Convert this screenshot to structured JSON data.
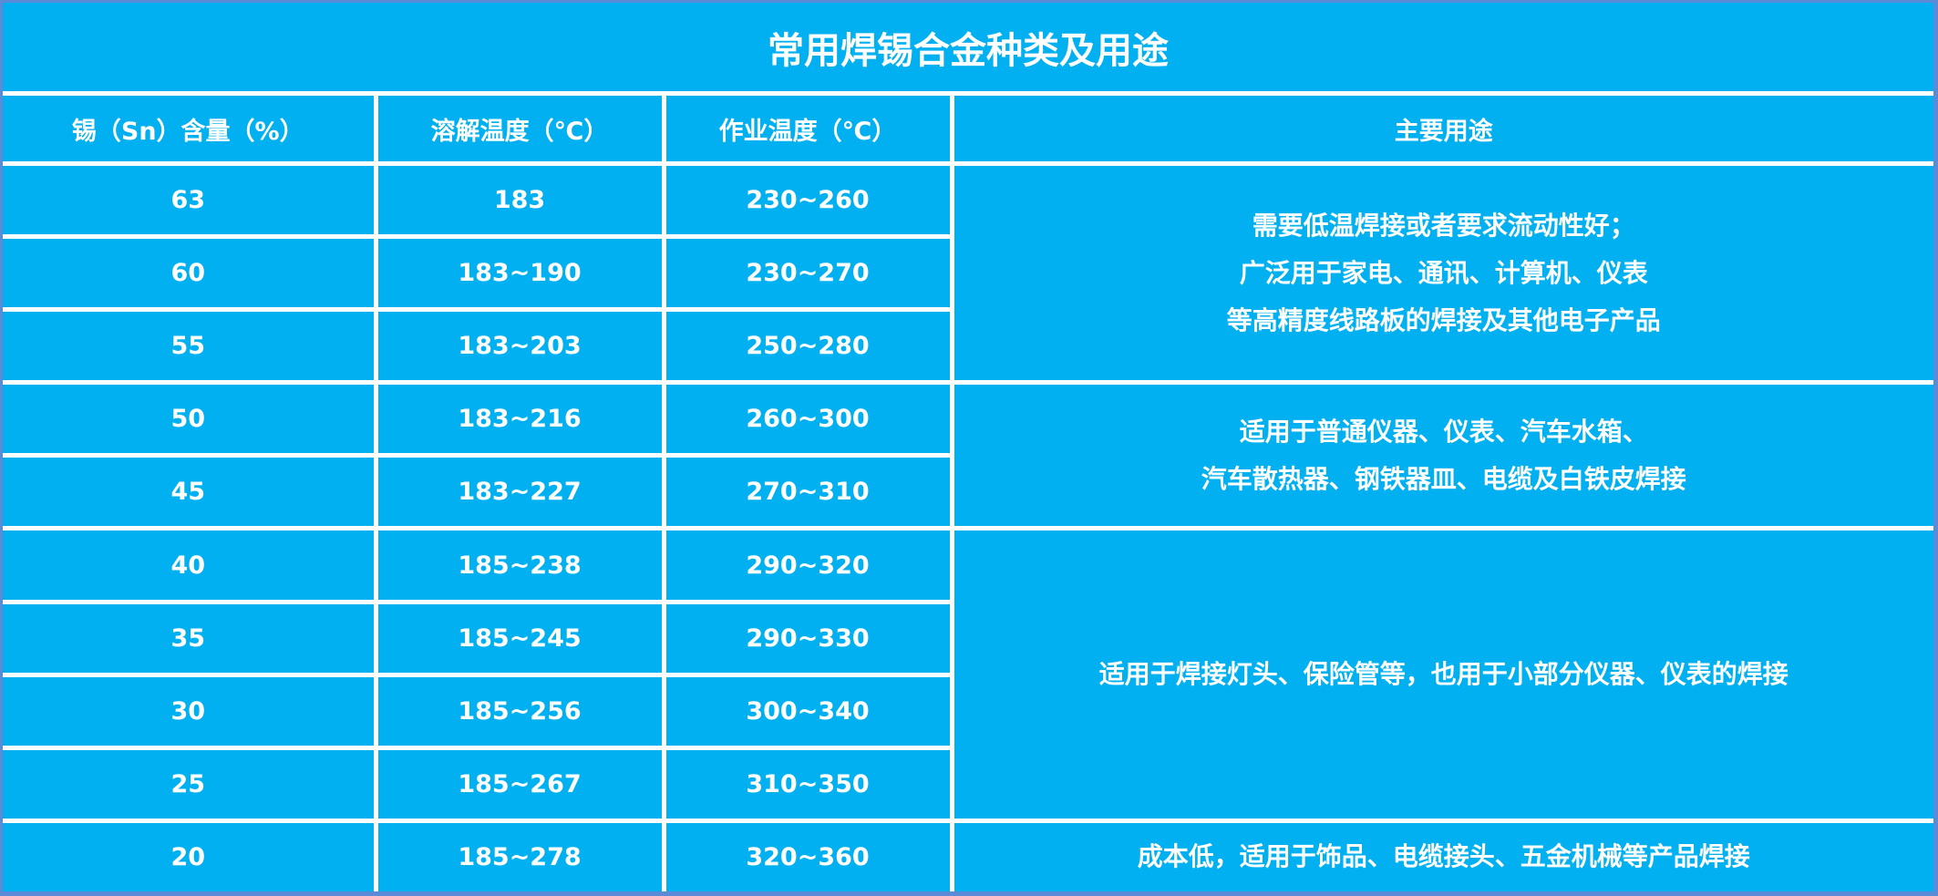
{
  "title": "常用焊锡合金种类及用途",
  "colors": {
    "background": "#00b0f0",
    "grid": "#ffffff",
    "text": "#ffffff"
  },
  "headers": [
    "锡（Sn）含量（%）",
    "溶解温度（℃）",
    "作业温度（℃）",
    "主要用途"
  ],
  "rows": [
    {
      "sn": "63",
      "melt": "183",
      "work": "230~260"
    },
    {
      "sn": "60",
      "melt": "183~190",
      "work": "230~270"
    },
    {
      "sn": "55",
      "melt": "183~203",
      "work": "250~280"
    },
    {
      "sn": "50",
      "melt": "183~216",
      "work": "260~300"
    },
    {
      "sn": "45",
      "melt": "183~227",
      "work": "270~310"
    },
    {
      "sn": "40",
      "melt": "185~238",
      "work": "290~320"
    },
    {
      "sn": "35",
      "melt": "185~245",
      "work": "290~330"
    },
    {
      "sn": "30",
      "melt": "185~256",
      "work": "300~340"
    },
    {
      "sn": "25",
      "melt": "185~267",
      "work": "310~350"
    },
    {
      "sn": "20",
      "melt": "185~278",
      "work": "320~360"
    }
  ],
  "uses": [
    {
      "lines": [
        "需要低温焊接或者要求流动性好；",
        "广泛用于家电、通讯、计算机、仪表",
        "等高精度线路板的焊接及其他电子产品"
      ]
    },
    {
      "lines": [
        "适用于普通仪器、仪表、汽车水箱、",
        "汽车散热器、钢铁器皿、电缆及白铁皮焊接"
      ]
    },
    {
      "lines": [
        "适用于焊接灯头、保险管等，也用于小部分仪器、仪表的焊接"
      ]
    },
    {
      "lines": [
        "成本低，适用于饰品、电缆接头、五金机械等产品焊接"
      ]
    }
  ]
}
